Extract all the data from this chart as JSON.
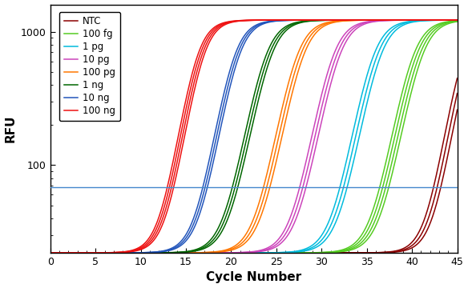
{
  "title": "",
  "xlabel": "Cycle Number",
  "ylabel": "RFU",
  "xlim": [
    0,
    45
  ],
  "ylim_log": [
    22,
    1600
  ],
  "threshold_y": 68,
  "threshold_color": "#4488CC",
  "groups": [
    {
      "label": "NTC",
      "color": "#8B0000",
      "midpoint": 46.0,
      "n": 3,
      "spread": 0.4,
      "k": 1.0
    },
    {
      "label": "100 fg",
      "color": "#55CC22",
      "midpoint": 40.5,
      "n": 4,
      "spread": 0.5,
      "k": 0.9
    },
    {
      "label": "1 pg",
      "color": "#00BBDD",
      "midpoint": 36.0,
      "n": 3,
      "spread": 0.4,
      "k": 0.9
    },
    {
      "label": "10 pg",
      "color": "#CC44BB",
      "midpoint": 31.5,
      "n": 3,
      "spread": 0.35,
      "k": 0.9
    },
    {
      "label": "100 pg",
      "color": "#FF7700",
      "midpoint": 27.5,
      "n": 3,
      "spread": 0.35,
      "k": 0.9
    },
    {
      "label": "1 ng",
      "color": "#006600",
      "midpoint": 24.0,
      "n": 3,
      "spread": 0.3,
      "k": 0.9
    },
    {
      "label": "10 ng",
      "color": "#2255BB",
      "midpoint": 20.5,
      "n": 3,
      "spread": 0.25,
      "k": 0.95
    },
    {
      "label": "100 ng",
      "color": "#EE1111",
      "midpoint": 16.5,
      "n": 4,
      "spread": 0.35,
      "k": 1.0
    }
  ],
  "sigmoid_L": 1200,
  "background": 22,
  "legend_fontsize": 8.5,
  "tick_labelsize": 9,
  "axis_labelsize": 11
}
